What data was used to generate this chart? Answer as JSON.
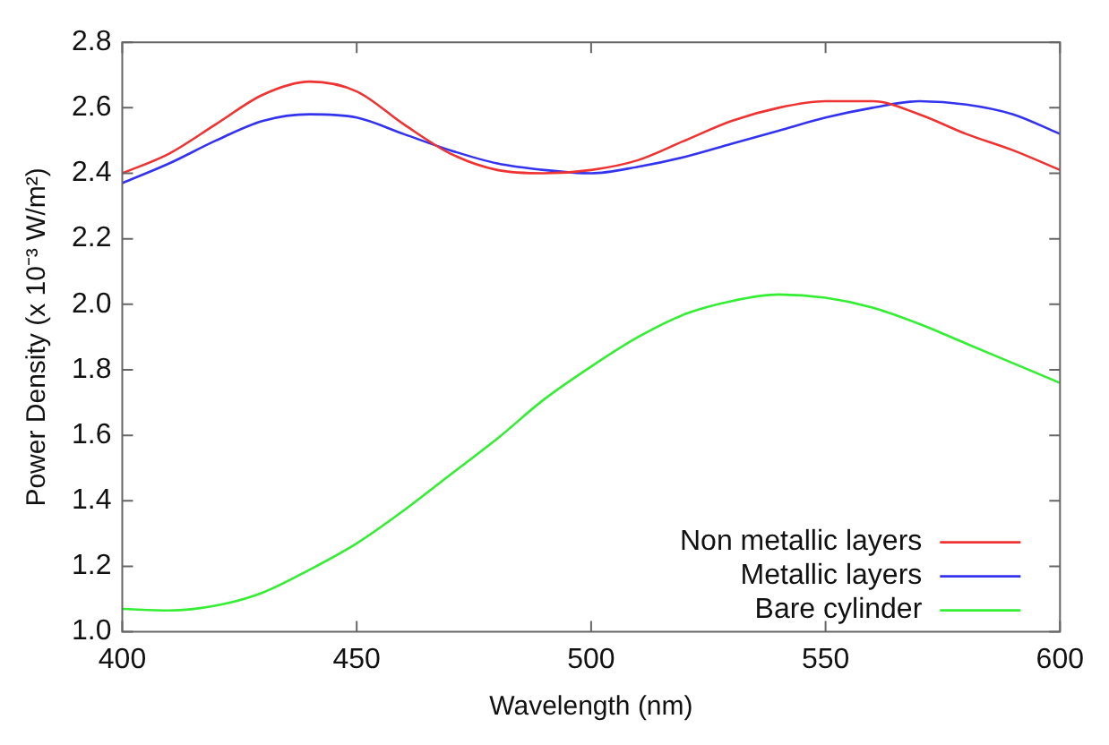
{
  "chart_data": {
    "type": "line",
    "xlabel": "Wavelength (nm)",
    "ylabel": "Power Density (x 10⁻³ W/m²)",
    "x": [
      400,
      410,
      420,
      430,
      440,
      450,
      460,
      470,
      480,
      490,
      500,
      510,
      520,
      530,
      540,
      550,
      560,
      570,
      580,
      590,
      600
    ],
    "series": [
      {
        "name": "Non metallic layers",
        "color": "#ee3333",
        "values": [
          2.4,
          2.46,
          2.55,
          2.64,
          2.68,
          2.65,
          2.55,
          2.46,
          2.41,
          2.4,
          2.41,
          2.44,
          2.5,
          2.56,
          2.6,
          2.62,
          2.62,
          2.58,
          2.52,
          2.47,
          2.41
        ]
      },
      {
        "name": "Metallic layers",
        "color": "#3333ee",
        "values": [
          2.37,
          2.43,
          2.5,
          2.56,
          2.58,
          2.57,
          2.52,
          2.47,
          2.43,
          2.41,
          2.4,
          2.42,
          2.45,
          2.49,
          2.53,
          2.57,
          2.6,
          2.62,
          2.61,
          2.58,
          2.52
        ]
      },
      {
        "name": "Bare cylinder",
        "color": "#33ee33",
        "values": [
          1.07,
          1.065,
          1.08,
          1.12,
          1.19,
          1.27,
          1.37,
          1.48,
          1.59,
          1.71,
          1.81,
          1.9,
          1.97,
          2.01,
          2.03,
          2.02,
          1.99,
          1.94,
          1.88,
          1.82,
          1.76
        ]
      }
    ],
    "xlim": [
      400,
      600
    ],
    "xticks": [
      400,
      450,
      500,
      550,
      600
    ],
    "ylim": [
      1.0,
      2.8
    ],
    "yticks": [
      {
        "value": 1,
        "label": "1.0"
      },
      1.2,
      1.4,
      1.6,
      1.8,
      {
        "value": 2,
        "label": "2.0"
      },
      2.2,
      2.4,
      2.6,
      2.8
    ],
    "grid": false,
    "legend": "bottom right",
    "marker": "none",
    "line_style": "solid"
  }
}
